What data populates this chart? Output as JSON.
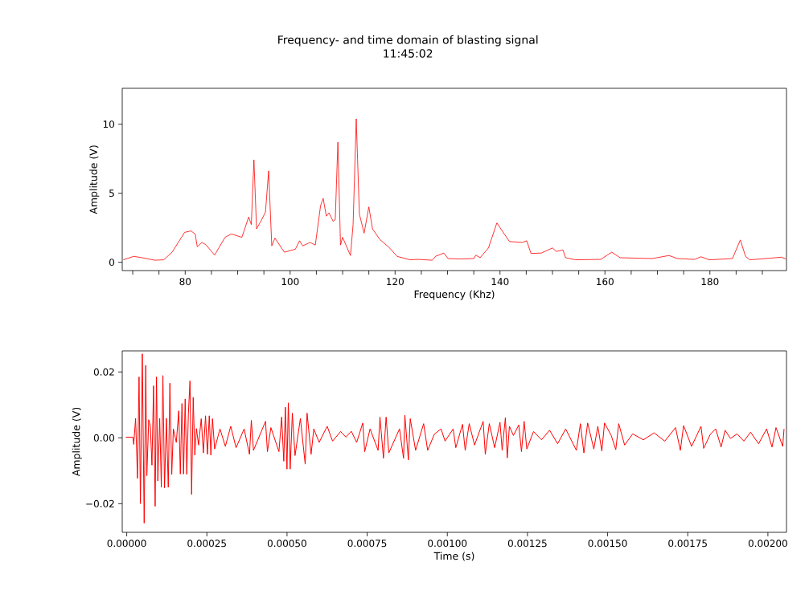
{
  "chart_data": [
    {
      "type": "line",
      "title": "Frequency- and time domain of blasting signal",
      "subtitle": "11:45:02",
      "xlabel": "Frequency (Khz)",
      "ylabel": "Amplitude (V)",
      "color": "#ff0000",
      "xlim": [
        68,
        194.6
      ],
      "ylim": [
        -0.6,
        12.6
      ],
      "xticks": [
        {
          "value": 70,
          "label": null
        },
        {
          "value": 75,
          "label": null
        },
        80,
        {
          "value": 85,
          "label": null
        },
        {
          "value": 90,
          "label": null
        },
        {
          "value": 95,
          "label": null
        },
        100,
        {
          "value": 105,
          "label": null
        },
        {
          "value": 110,
          "label": null
        },
        {
          "value": 115,
          "label": null
        },
        120,
        {
          "value": 125,
          "label": null
        },
        {
          "value": 130,
          "label": null
        },
        {
          "value": 135,
          "label": null
        },
        140,
        {
          "value": 145,
          "label": null
        },
        {
          "value": 150,
          "label": null
        },
        {
          "value": 155,
          "label": null
        },
        160,
        {
          "value": 165,
          "label": null
        },
        {
          "value": 170,
          "label": null
        },
        {
          "value": 175,
          "label": null
        },
        180,
        {
          "value": 185,
          "label": null
        },
        {
          "value": 190,
          "label": null
        }
      ],
      "yticks": [
        0,
        5,
        10
      ],
      "x": [
        68.2,
        70.2,
        71.8,
        74.2,
        75.9,
        77.5,
        79.9,
        81.1,
        81.9,
        82.3,
        83.2,
        84.0,
        85.6,
        87.6,
        88.8,
        90.8,
        92.1,
        92.6,
        93.1,
        93.6,
        94.5,
        95.3,
        95.9,
        96.5,
        97.1,
        98.9,
        101.0,
        101.8,
        102.4,
        103.8,
        104.8,
        105.8,
        106.3,
        106.9,
        107.4,
        108.2,
        108.6,
        109.1,
        109.6,
        110.0,
        111.5,
        112.0,
        112.6,
        113.2,
        114.1,
        115.0,
        115.7,
        117.1,
        118.8,
        120.4,
        122.8,
        124.4,
        127.1,
        127.7,
        129.3,
        130.1,
        132.5,
        135.0,
        135.4,
        136.2,
        137.8,
        139.4,
        141.8,
        144.3,
        145.1,
        145.9,
        147.9,
        150.0,
        150.7,
        152.0,
        152.5,
        154.4,
        159.2,
        161.3,
        162.9,
        169.0,
        172.2,
        173.8,
        177.1,
        178.3,
        179.9,
        184.3,
        185.8,
        186.8,
        187.6,
        191.6,
        193.6,
        194.5
      ],
      "values": [
        0.18,
        0.43,
        0.33,
        0.15,
        0.18,
        0.73,
        2.17,
        2.27,
        2.05,
        1.13,
        1.44,
        1.25,
        0.52,
        1.81,
        2.05,
        1.81,
        3.28,
        2.73,
        7.42,
        2.42,
        3.03,
        3.64,
        6.62,
        1.19,
        1.75,
        0.73,
        0.95,
        1.56,
        1.19,
        1.44,
        1.25,
        4.1,
        4.63,
        3.34,
        3.58,
        2.97,
        3.09,
        8.7,
        1.25,
        1.81,
        0.49,
        2.73,
        10.39,
        3.49,
        2.11,
        4.01,
        2.42,
        1.65,
        1.1,
        0.43,
        0.18,
        0.21,
        0.15,
        0.43,
        0.67,
        0.27,
        0.24,
        0.27,
        0.52,
        0.33,
        1.04,
        2.85,
        1.5,
        1.44,
        1.56,
        0.64,
        0.67,
        1.04,
        0.79,
        0.89,
        0.33,
        0.18,
        0.21,
        0.73,
        0.33,
        0.27,
        0.49,
        0.27,
        0.21,
        0.4,
        0.18,
        0.27,
        1.62,
        0.43,
        0.18,
        0.3,
        0.37,
        0.24
      ]
    },
    {
      "type": "line",
      "xlabel": "Time (s)",
      "ylabel": "Amplitude (V)",
      "color": "#ff0000",
      "xlim": [
        -1.4e-05,
        0.002058
      ],
      "ylim": [
        -0.0287,
        0.0264
      ],
      "xticks": [
        {
          "value": 0,
          "label": "0.00000"
        },
        {
          "value": 0.00025,
          "label": "0.00025"
        },
        {
          "value": 0.0005,
          "label": "0.00050"
        },
        {
          "value": 0.00075,
          "label": "0.00075"
        },
        {
          "value": 0.001,
          "label": "0.00100"
        },
        {
          "value": 0.00125,
          "label": "0.00125"
        },
        {
          "value": 0.0015,
          "label": "0.00150"
        },
        {
          "value": 0.00175,
          "label": "0.00175"
        },
        {
          "value": 0.002,
          "label": "0.00200"
        }
      ],
      "yticks": [
        {
          "value": -0.02,
          "label": "−0.02"
        },
        {
          "value": 0,
          "label": "0.00"
        },
        {
          "value": 0.02,
          "label": "0.02"
        }
      ],
      "x": [
        -3e-06,
        1.93e-05,
        2.18e-05,
        2.77e-05,
        3.35e-05,
        3.85e-05,
        4.27e-05,
        4.86e-05,
        5.44e-05,
        5.94e-05,
        6.28e-05,
        6.86e-05,
        7.36e-05,
        7.87e-05,
        8.37e-05,
        8.87e-05,
        9.29e-05,
        9.7e-05,
        0.0001029,
        0.0001079,
        0.0001129,
        0.0001179,
        0.0001238,
        0.0001296,
        0.0001346,
        0.0001405,
        0.0001455,
        0.0001547,
        0.0001622,
        0.0001672,
        0.0001723,
        0.0001773,
        0.0001823,
        0.0001873,
        0.0001923,
        0.0001973,
        0.0002024,
        0.0002074,
        0.0002124,
        0.0002174,
        0.0002241,
        0.0002324,
        0.0002391,
        0.0002458,
        0.0002517,
        0.0002575,
        0.0002625,
        0.0002675,
        0.0002742,
        0.0002909,
        0.0003077,
        0.0003244,
        0.0003411,
        0.0003662,
        0.0003829,
        0.0003887,
        0.0003954,
        0.000433,
        0.0004389,
        0.0004497,
        0.0004748,
        0.0004832,
        0.0004899,
        0.0004949,
        0.0004999,
        0.0005041,
        0.0005099,
        0.0005166,
        0.000525,
        0.0005417,
        0.0005567,
        0.0005626,
        0.0005751,
        0.0005835,
        0.0006002,
        0.0006253,
        0.000642,
        0.0006671,
        0.0006838,
        0.0007005,
        0.0007172,
        0.0007364,
        0.0007423,
        0.000759,
        0.0007841,
        0.0007899,
        0.0008008,
        0.0008091,
        0.0008175,
        0.0008509,
        0.0008635,
        0.0008676,
        0.0008785,
        0.0008844,
        0.0009011,
        0.0009262,
        0.0009387,
        0.0009596,
        0.0009805,
        0.000993,
        0.0010182,
        0.0010265,
        0.0010474,
        0.0010558,
        0.0010683,
        0.001085,
        0.0011118,
        0.0011185,
        0.001131,
        0.0011477,
        0.0011644,
        0.0011711,
        0.0011811,
        0.001187,
        0.0011937,
        0.0012062,
        0.0012229,
        0.0012313,
        0.0012396,
        0.001248,
        0.0012689,
        0.001294,
        0.001319,
        0.0013441,
        0.0013692,
        0.0014026,
        0.0014152,
        0.001426,
        0.0014377,
        0.001457,
        0.0014695,
        0.001482,
        0.0014904,
        0.0015113,
        0.0015255,
        0.0015347,
        0.0015531,
        0.0015782,
        0.0016116,
        0.001645,
        0.0016784,
        0.0017119,
        0.0017269,
        0.001737,
        0.001762,
        0.0017913,
        0.0017996,
        0.0018205,
        0.0018372,
        0.001854,
        0.0018665,
        0.0018832,
        0.0019041,
        0.001925,
        0.0019459,
        0.001971,
        0.001996,
        0.0020128,
        0.0020253,
        0.0020462,
        0.0020504
      ],
      "values": [
        0.0002,
        0.0002,
        -0.002,
        0.0059,
        -0.0123,
        0.0185,
        -0.02,
        0.0255,
        -0.0259,
        0.022,
        -0.0115,
        0.0055,
        0.0035,
        -0.0083,
        0.0158,
        -0.0208,
        0.0185,
        -0.0131,
        0.0059,
        -0.015,
        0.0189,
        -0.0152,
        0.0059,
        -0.015,
        0.0166,
        -0.0111,
        0.0027,
        -0.0014,
        0.0082,
        -0.011,
        0.0104,
        -0.011,
        0.0118,
        -0.0111,
        0.0072,
        0.0173,
        -0.0172,
        0.0123,
        -0.0053,
        0.0028,
        -0.0022,
        0.0058,
        -0.0046,
        0.0067,
        -0.005,
        0.0067,
        -0.0053,
        0.0058,
        -0.0034,
        0.0027,
        -0.0026,
        0.0035,
        -0.003,
        0.0027,
        -0.005,
        0.0053,
        -0.0038,
        0.005,
        -0.0042,
        0.0031,
        -0.0042,
        0.0063,
        -0.0071,
        0.0093,
        -0.0095,
        0.0106,
        -0.0095,
        0.0075,
        -0.0054,
        0.0059,
        -0.008,
        0.0075,
        -0.005,
        0.0027,
        -0.0014,
        0.0035,
        -0.001,
        0.0019,
        0.0002,
        0.002,
        -0.0014,
        0.0045,
        -0.0042,
        0.0027,
        -0.0038,
        0.0063,
        -0.0062,
        0.0063,
        -0.0046,
        0.0027,
        -0.0062,
        0.0069,
        -0.0067,
        0.0058,
        -0.0038,
        0.0043,
        -0.0038,
        0.0011,
        0.0027,
        -0.001,
        0.0027,
        -0.003,
        0.0041,
        -0.0038,
        0.0043,
        -0.0022,
        0.005,
        -0.005,
        0.0043,
        -0.003,
        0.0047,
        -0.0038,
        0.0061,
        -0.0061,
        0.0035,
        0.0007,
        0.0039,
        -0.0042,
        0.005,
        -0.0034,
        0.0019,
        -0.0006,
        0.0023,
        -0.0018,
        0.0027,
        -0.0038,
        0.0043,
        -0.0046,
        0.0045,
        -0.0034,
        0.0035,
        -0.004,
        0.0045,
        0.0007,
        -0.0036,
        0.0043,
        -0.0022,
        0.0012,
        -0.0006,
        0.0015,
        -0.001,
        0.0031,
        -0.0038,
        0.0037,
        -0.0026,
        0.0035,
        -0.0032,
        0.0011,
        0.0027,
        -0.0028,
        0.0023,
        -0.0002,
        0.0012,
        -0.001,
        0.0017,
        -0.0018,
        0.0027,
        -0.0028,
        0.0031,
        -0.0026,
        0.0027
      ]
    }
  ]
}
